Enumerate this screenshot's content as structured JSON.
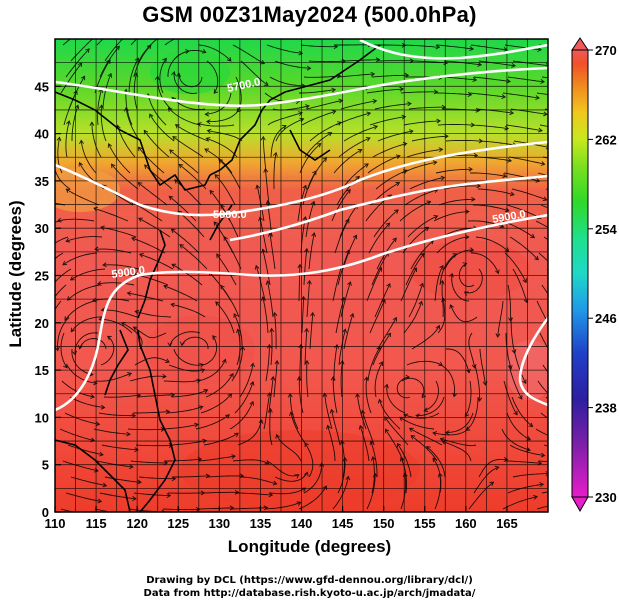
{
  "title": "GSM 00Z31May2024 (500.0hPa)",
  "x_axis": {
    "label": "Longitude (degrees)",
    "range": [
      110,
      170
    ],
    "ticks": [
      110,
      115,
      120,
      125,
      130,
      135,
      140,
      145,
      150,
      155,
      160,
      165
    ]
  },
  "y_axis": {
    "label": "Latitude  (degrees)",
    "range": [
      0,
      50
    ],
    "ticks": [
      0,
      5,
      10,
      15,
      20,
      25,
      30,
      35,
      40,
      45
    ]
  },
  "colorbar": {
    "min": 230,
    "max": 270,
    "tick_labels": [
      "270",
      "262",
      "254",
      "246",
      "238",
      "230"
    ],
    "tick_values": [
      270,
      262,
      254,
      246,
      238,
      230
    ],
    "colors": [
      "#e81ec8",
      "#7a1fa8",
      "#2c1fa0",
      "#1f3fc8",
      "#1f9ae8",
      "#1fd8c8",
      "#1fe08a",
      "#2fd82a",
      "#7ce01e",
      "#c8e81e",
      "#f0c81e",
      "#f08a1e",
      "#f0502a",
      "#f05a5a"
    ]
  },
  "contours": [
    {
      "label": "5800.0",
      "color": "#ffffff"
    },
    {
      "label": "5900.0",
      "color": "#ffffff"
    },
    {
      "label": "5900.0",
      "color": "#ffffff"
    },
    {
      "label": "5700.0",
      "color": "#ffffff"
    }
  ],
  "credits": {
    "line1": "Drawing by DCL (https://www.gfd-dennou.org/library/dcl/)",
    "line2": "Data from http://database.rish.kyoto-u.ac.jp/arch/jmadata/"
  }
}
